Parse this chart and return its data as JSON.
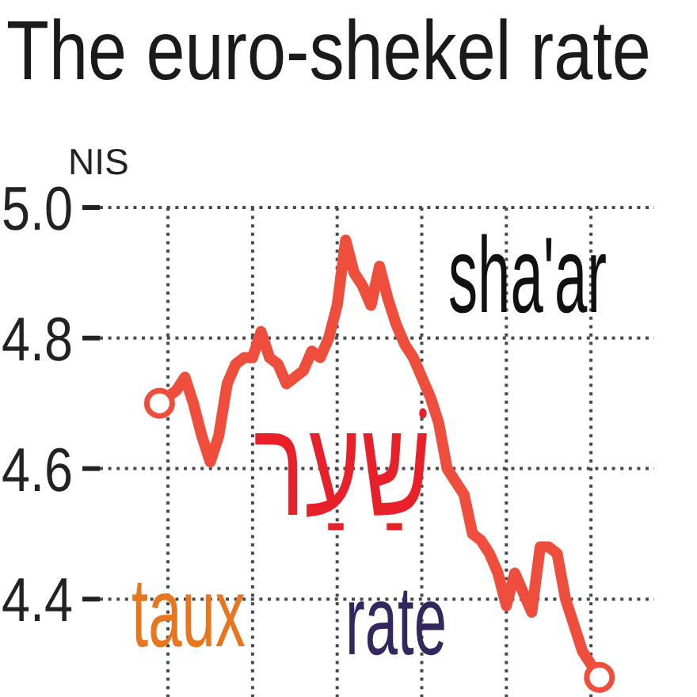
{
  "chart_data": {
    "type": "line",
    "title": "The euro-shekel rate",
    "ylabel": "NIS",
    "annotations": [
      "sha'ar",
      "שַׁעַר",
      "taux",
      "rate"
    ],
    "categories": [
      null,
      null,
      null,
      null,
      null,
      null,
      null,
      null,
      null,
      null,
      null,
      null,
      null,
      null,
      null,
      null,
      null,
      null,
      null,
      null,
      null,
      null,
      null,
      null,
      null,
      null,
      null,
      null,
      null,
      null,
      null,
      null,
      null,
      null,
      null,
      null,
      null,
      null,
      null,
      null,
      null,
      null,
      null,
      null,
      null,
      null,
      null,
      null,
      null,
      null,
      null,
      null,
      null
    ],
    "series": [
      {
        "color": "#f04e3c",
        "values": [
          4.7,
          4.71,
          4.72,
          4.74,
          4.7,
          4.65,
          4.61,
          4.65,
          4.73,
          4.76,
          4.77,
          4.77,
          4.81,
          4.77,
          4.76,
          4.73,
          4.74,
          4.75,
          4.78,
          4.77,
          4.8,
          4.85,
          4.95,
          4.9,
          4.88,
          4.85,
          4.91,
          4.86,
          4.82,
          4.79,
          4.77,
          4.74,
          4.71,
          4.67,
          4.6,
          4.58,
          4.56,
          4.5,
          4.49,
          4.47,
          4.44,
          4.39,
          4.44,
          4.41,
          4.38,
          4.48,
          4.48,
          4.47,
          4.4,
          4.36,
          4.32,
          4.3,
          4.28
        ]
      },
      {
        "type": "scatter",
        "color": "#f04e3c",
        "marker": "circle",
        "values": [
          4.7,
          null,
          null,
          null,
          null,
          null,
          null,
          null,
          null,
          null,
          null,
          null,
          null,
          null,
          null,
          null,
          null,
          null,
          null,
          null,
          null,
          null,
          null,
          null,
          null,
          null,
          null,
          null,
          null,
          null,
          null,
          null,
          null,
          null,
          null,
          null,
          null,
          null,
          null,
          null,
          null,
          null,
          null,
          null,
          null,
          null,
          null,
          null,
          null,
          null,
          null,
          null,
          4.28
        ]
      }
    ],
    "ylim": [
      4.25,
      5.0
    ],
    "yticks": [
      4.4,
      4.6,
      4.8,
      {
        "value": 5,
        "label": "5.0"
      }
    ],
    "tick_labels": "y",
    "grid": true
  }
}
